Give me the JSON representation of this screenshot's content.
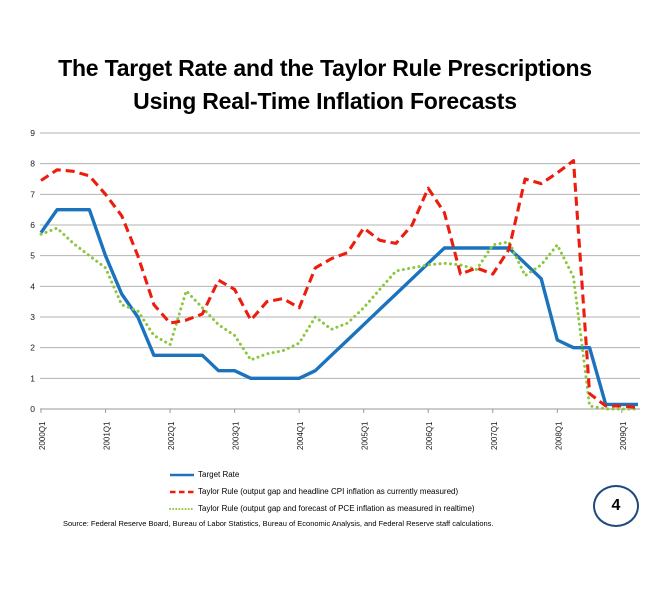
{
  "slide": {
    "title_line1": "The Target Rate and the Taylor Rule Prescriptions",
    "title_line2": "Using Real-Time Inflation Forecasts",
    "source_note": "Source:  Federal Reserve Board, Bureau of Labor Statistics,  Bureau of Economic Analysis, and Federal Reserve staff calculations.",
    "page_number": "4"
  },
  "chart_data": {
    "type": "line",
    "title": "",
    "x": [
      "2000Q1",
      "2000Q2",
      "2000Q3",
      "2000Q4",
      "2001Q1",
      "2001Q2",
      "2001Q3",
      "2001Q4",
      "2002Q1",
      "2002Q2",
      "2002Q3",
      "2002Q4",
      "2003Q1",
      "2003Q2",
      "2003Q3",
      "2003Q4",
      "2004Q1",
      "2004Q2",
      "2004Q3",
      "2004Q4",
      "2005Q1",
      "2005Q2",
      "2005Q3",
      "2005Q4",
      "2006Q1",
      "2006Q2",
      "2006Q3",
      "2006Q4",
      "2007Q1",
      "2007Q2",
      "2007Q3",
      "2007Q4",
      "2008Q1",
      "2008Q2",
      "2008Q3",
      "2008Q4",
      "2009Q1",
      "2009Q2"
    ],
    "x_tick_labels": [
      "2000Q1",
      "2001Q1",
      "2002Q1",
      "2003Q1",
      "2004Q1",
      "2005Q1",
      "2006Q1",
      "2007Q1",
      "2008Q1",
      "2009Q1"
    ],
    "ylim": [
      0,
      9
    ],
    "y_ticks": [
      0,
      1,
      2,
      3,
      4,
      5,
      6,
      7,
      8,
      9
    ],
    "grid": true,
    "legend_position": "bottom-left",
    "colors": {
      "grid": "#b3b3b3",
      "axis": "#999999",
      "text": "#1a1a1a"
    },
    "series": [
      {
        "name": "Target Rate",
        "color": "#1b73be",
        "style": "solid",
        "values": [
          5.75,
          6.5,
          6.5,
          6.5,
          5.0,
          3.75,
          3.0,
          1.75,
          1.75,
          1.75,
          1.75,
          1.25,
          1.25,
          1.0,
          1.0,
          1.0,
          1.0,
          1.25,
          1.75,
          2.25,
          2.75,
          3.25,
          3.75,
          4.25,
          4.75,
          5.25,
          5.25,
          5.25,
          5.25,
          5.25,
          4.75,
          4.25,
          2.25,
          2.0,
          2.0,
          0.15,
          0.15,
          0.15
        ]
      },
      {
        "name": "Taylor Rule (output gap and headline CPI inflation as currently measured)",
        "color": "#ec1c0f",
        "style": "dashed",
        "values": [
          7.45,
          7.8,
          7.75,
          7.6,
          7.0,
          6.3,
          5.0,
          3.4,
          2.8,
          2.9,
          3.1,
          4.2,
          3.9,
          2.9,
          3.5,
          3.6,
          3.3,
          4.6,
          4.9,
          5.1,
          5.9,
          5.5,
          5.4,
          6.0,
          7.2,
          6.4,
          4.4,
          4.6,
          4.4,
          5.2,
          7.5,
          7.35,
          7.7,
          8.1,
          0.5,
          0.1,
          0.1,
          0.05
        ]
      },
      {
        "name": "Taylor Rule (output gap and forecast of PCE inflation  as measured in realtime)",
        "color": "#8dc63f",
        "style": "dotted",
        "values": [
          5.7,
          5.9,
          5.4,
          5.0,
          4.6,
          3.4,
          3.2,
          2.4,
          2.1,
          3.85,
          3.3,
          2.75,
          2.4,
          1.6,
          1.8,
          1.9,
          2.15,
          3.0,
          2.6,
          2.8,
          3.3,
          3.9,
          4.5,
          4.6,
          4.7,
          4.75,
          4.7,
          4.55,
          5.35,
          5.45,
          4.35,
          4.7,
          5.35,
          4.3,
          0.1,
          0.0,
          0.0,
          0.0
        ]
      }
    ]
  }
}
